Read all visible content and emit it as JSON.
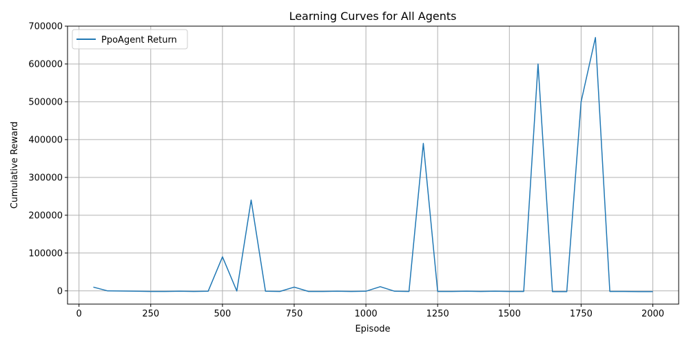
{
  "chart_data": {
    "type": "line",
    "title": "Learning Curves for All Agents",
    "xlabel": "Episode",
    "ylabel": "Cumulative Reward",
    "xlim": [
      -40,
      2090
    ],
    "ylim": [
      -35000,
      700000
    ],
    "xticks": [
      0,
      250,
      500,
      750,
      1000,
      1250,
      1500,
      1750,
      2000
    ],
    "yticks": [
      0,
      100000,
      200000,
      300000,
      400000,
      500000,
      600000,
      700000
    ],
    "grid": true,
    "legend_position": "upper-left",
    "series": [
      {
        "name": "PpoAgent Return",
        "color": "#1f77b4",
        "x": [
          50,
          100,
          150,
          200,
          250,
          300,
          350,
          400,
          450,
          500,
          550,
          600,
          650,
          700,
          750,
          800,
          850,
          900,
          950,
          1000,
          1050,
          1100,
          1150,
          1200,
          1250,
          1300,
          1350,
          1400,
          1450,
          1500,
          1550,
          1600,
          1650,
          1700,
          1750,
          1800,
          1850,
          1900,
          1950,
          2000
        ],
        "y": [
          10000,
          0,
          -500,
          -1000,
          -1500,
          -1500,
          -1000,
          -1500,
          -1000,
          90000,
          -500,
          240000,
          -1000,
          -1500,
          10000,
          -1500,
          -1500,
          -1000,
          -1500,
          -1000,
          11000,
          -1000,
          -1500,
          390000,
          -1500,
          -1500,
          -1000,
          -1500,
          -1000,
          -1500,
          -1500,
          600000,
          -2000,
          -2000,
          500000,
          670000,
          -1500,
          -1500,
          -2000,
          -2000
        ]
      }
    ]
  }
}
